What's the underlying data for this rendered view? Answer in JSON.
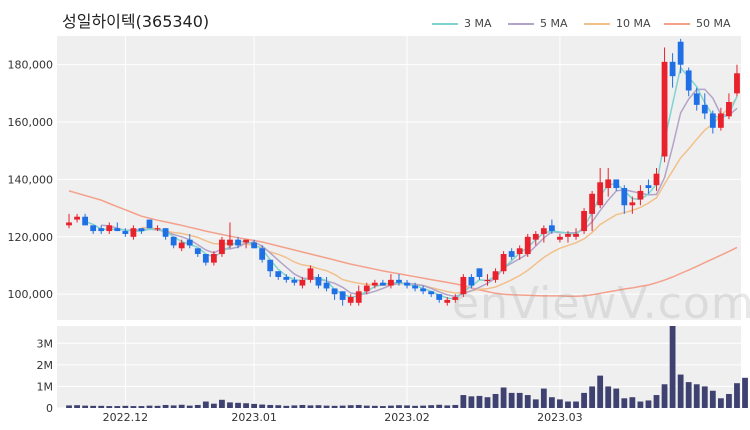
{
  "chart_data": {
    "title": "성일하이텍(365340)",
    "type": "candlestick",
    "x_ticks": [
      "2022.12",
      "2023.01",
      "2023.02",
      "2023.03"
    ],
    "y_ticks": [
      "100,000",
      "120,000",
      "140,000",
      "160,000",
      "180,000"
    ],
    "y_range": [
      91000,
      190000
    ],
    "volume_ticks": [
      "0",
      "1M",
      "2M",
      "3M"
    ],
    "volume_range": [
      0,
      3800000
    ],
    "legend": [
      {
        "name": "3 MA",
        "color": "#7fd3cf"
      },
      {
        "name": "5 MA",
        "color": "#b3a3c9"
      },
      {
        "name": "10 MA",
        "color": "#f2c08a"
      },
      {
        "name": "50 MA",
        "color": "#f4a08b"
      }
    ],
    "candles": [
      [
        124000,
        128000,
        123000,
        125000
      ],
      [
        126000,
        128000,
        125000,
        127000
      ],
      [
        127000,
        128000,
        124000,
        124000
      ],
      [
        124000,
        124000,
        121000,
        122000
      ],
      [
        123000,
        124000,
        121000,
        122000
      ],
      [
        122000,
        125000,
        121000,
        124000
      ],
      [
        123000,
        125000,
        122000,
        122000
      ],
      [
        122000,
        123000,
        120000,
        121000
      ],
      [
        120000,
        124000,
        119000,
        123000
      ],
      [
        123000,
        123000,
        121000,
        122000
      ],
      [
        126000,
        126000,
        123000,
        123000
      ],
      [
        123000,
        124000,
        122000,
        123000
      ],
      [
        123000,
        123000,
        119000,
        120000
      ],
      [
        120000,
        120000,
        116000,
        117000
      ],
      [
        116000,
        119000,
        115000,
        118000
      ],
      [
        119000,
        121000,
        116000,
        117000
      ],
      [
        116000,
        116000,
        113000,
        114000
      ],
      [
        114000,
        114000,
        110000,
        111000
      ],
      [
        111000,
        115000,
        110000,
        114000
      ],
      [
        114000,
        120000,
        113000,
        119000
      ],
      [
        117000,
        125000,
        116000,
        119000
      ],
      [
        119000,
        120000,
        116000,
        117000
      ],
      [
        118000,
        119000,
        116000,
        119000
      ],
      [
        118000,
        119000,
        116000,
        116000
      ],
      [
        116000,
        117000,
        111000,
        112000
      ],
      [
        112000,
        112000,
        106000,
        108000
      ],
      [
        108000,
        108000,
        105000,
        106000
      ],
      [
        106000,
        107000,
        104000,
        105000
      ],
      [
        105000,
        106000,
        103000,
        104000
      ],
      [
        103000,
        106000,
        102000,
        105000
      ],
      [
        105000,
        110000,
        104000,
        109000
      ],
      [
        106000,
        107000,
        102000,
        103000
      ],
      [
        104000,
        106000,
        101000,
        102000
      ],
      [
        102000,
        102000,
        98000,
        100000
      ],
      [
        101000,
        101000,
        96000,
        98000
      ],
      [
        97000,
        100000,
        96000,
        99000
      ],
      [
        97000,
        103000,
        96000,
        101000
      ],
      [
        101000,
        104000,
        100000,
        103000
      ],
      [
        103000,
        105000,
        102000,
        104000
      ],
      [
        104000,
        105000,
        103000,
        103000
      ],
      [
        103000,
        107000,
        102000,
        105000
      ],
      [
        105000,
        107000,
        103000,
        104000
      ],
      [
        104000,
        105000,
        102000,
        103000
      ],
      [
        103000,
        104000,
        101000,
        102000
      ],
      [
        102000,
        103000,
        100000,
        101000
      ],
      [
        101000,
        101000,
        99000,
        100000
      ],
      [
        100000,
        100000,
        97000,
        98000
      ],
      [
        97000,
        99000,
        96000,
        98000
      ],
      [
        98000,
        100000,
        97000,
        99000
      ],
      [
        100000,
        107000,
        99000,
        106000
      ],
      [
        106000,
        107000,
        102000,
        103000
      ],
      [
        109000,
        109000,
        105000,
        106000
      ],
      [
        105000,
        107000,
        103000,
        105000
      ],
      [
        105000,
        109000,
        104000,
        108000
      ],
      [
        108000,
        115000,
        107000,
        114000
      ],
      [
        115000,
        116000,
        112000,
        113000
      ],
      [
        114000,
        117000,
        112000,
        116000
      ],
      [
        114000,
        121000,
        113000,
        120000
      ],
      [
        119000,
        122000,
        117000,
        121000
      ],
      [
        121000,
        124000,
        118000,
        123000
      ],
      [
        124000,
        126000,
        121000,
        122000
      ],
      [
        119000,
        121000,
        118000,
        120000
      ],
      [
        120000,
        122000,
        118000,
        121000
      ],
      [
        120000,
        123000,
        119000,
        121000
      ],
      [
        122000,
        130000,
        121000,
        129000
      ],
      [
        128000,
        136000,
        122000,
        135000
      ],
      [
        131000,
        144000,
        130000,
        139000
      ],
      [
        137000,
        144000,
        134000,
        140000
      ],
      [
        140000,
        140000,
        136000,
        137000
      ],
      [
        137000,
        138000,
        128000,
        131000
      ],
      [
        131000,
        134000,
        128000,
        132000
      ],
      [
        133000,
        138000,
        131000,
        136000
      ],
      [
        138000,
        140000,
        135000,
        137000
      ],
      [
        138000,
        144000,
        136000,
        142000
      ],
      [
        148000,
        186000,
        146000,
        181000
      ],
      [
        181000,
        184000,
        172000,
        176000
      ],
      [
        188000,
        189000,
        177000,
        180000
      ],
      [
        178000,
        179000,
        169000,
        171000
      ],
      [
        170000,
        172000,
        164000,
        166000
      ],
      [
        166000,
        170000,
        161000,
        163000
      ],
      [
        163000,
        164000,
        156000,
        158000
      ],
      [
        158000,
        165000,
        157000,
        163000
      ],
      [
        162000,
        170000,
        161000,
        167000
      ],
      [
        170000,
        180000,
        169000,
        177000
      ]
    ],
    "volumes": [
      120000,
      130000,
      110000,
      100000,
      100000,
      90000,
      90000,
      100000,
      90000,
      90000,
      110000,
      100000,
      140000,
      120000,
      150000,
      110000,
      140000,
      300000,
      200000,
      380000,
      260000,
      240000,
      220000,
      190000,
      160000,
      140000,
      130000,
      100000,
      120000,
      140000,
      120000,
      130000,
      110000,
      100000,
      110000,
      130000,
      140000,
      110000,
      100000,
      90000,
      110000,
      130000,
      120000,
      100000,
      110000,
      130000,
      150000,
      120000,
      140000,
      600000,
      540000,
      560000,
      500000,
      650000,
      950000,
      700000,
      700000,
      600000,
      400000,
      900000,
      500000,
      400000,
      300000,
      300000,
      700000,
      1000000,
      1500000,
      1000000,
      900000,
      450000,
      500000,
      300000,
      350000,
      600000,
      1100000,
      3800000,
      1550000,
      1200000,
      1100000,
      1000000,
      800000,
      450000,
      650000,
      1150000,
      1400000
    ],
    "ma3": [
      null,
      null,
      125333,
      124333,
      122667,
      122667,
      122667,
      122333,
      122000,
      122000,
      122667,
      122667,
      122000,
      120000,
      118333,
      117333,
      116333,
      114000,
      113000,
      114667,
      116667,
      118333,
      118333,
      117333,
      115667,
      112000,
      108667,
      106333,
      105000,
      104667,
      106000,
      105667,
      104667,
      101667,
      100000,
      99000,
      99333,
      101000,
      102667,
      103333,
      104000,
      104000,
      103333,
      103000,
      102000,
      101000,
      99667,
      98667,
      98333,
      101000,
      102667,
      105000,
      104667,
      106333,
      109000,
      111667,
      114333,
      116333,
      119000,
      121333,
      122000,
      121667,
      121333,
      120667,
      123667,
      128333,
      134333,
      138000,
      138667,
      136000,
      133333,
      133000,
      135000,
      138333,
      153333,
      166333,
      179000,
      175667,
      172333,
      166667,
      162333,
      161333,
      162667,
      169000
    ],
    "ma5": [
      null,
      null,
      null,
      null,
      124000,
      123800,
      123000,
      122200,
      122400,
      122400,
      122600,
      122400,
      121800,
      120800,
      120000,
      119000,
      117200,
      115400,
      114400,
      115800,
      115800,
      116400,
      117800,
      118200,
      116800,
      114400,
      111800,
      109400,
      107000,
      105600,
      105400,
      105200,
      104600,
      103800,
      102400,
      100400,
      100000,
      100200,
      101000,
      102000,
      103200,
      103800,
      103800,
      103400,
      103000,
      102000,
      100800,
      99800,
      99200,
      100200,
      101200,
      102400,
      103800,
      105600,
      109200,
      110800,
      112400,
      114000,
      116800,
      119600,
      121800,
      121400,
      121400,
      121400,
      122600,
      125200,
      129200,
      132800,
      136000,
      136400,
      135800,
      135200,
      134600,
      134800,
      140600,
      151400,
      163200,
      168000,
      171400,
      171400,
      168400,
      162600,
      162400,
      164800
    ],
    "ma10": [
      null,
      null,
      null,
      null,
      null,
      null,
      null,
      null,
      null,
      123200,
      123200,
      122700,
      122000,
      121500,
      121200,
      120500,
      119800,
      118600,
      117600,
      117600,
      117600,
      117600,
      117500,
      117000,
      116200,
      114700,
      113900,
      112800,
      111200,
      110200,
      109800,
      108900,
      108200,
      106900,
      105100,
      104400,
      103800,
      103400,
      103300,
      103100,
      103300,
      103600,
      103700,
      103500,
      103100,
      102300,
      101600,
      100900,
      100400,
      100600,
      101200,
      101700,
      101900,
      102500,
      103700,
      105000,
      106500,
      108300,
      110600,
      112800,
      114600,
      116000,
      117000,
      117900,
      119300,
      121500,
      124300,
      126000,
      127700,
      128400,
      129200,
      130200,
      131800,
      133600,
      138400,
      143000,
      147500,
      150600,
      154000,
      157200,
      159400,
      162200,
      164900,
      168600
    ],
    "ma50": [
      136000,
      135200,
      134400,
      133600,
      132800,
      131600,
      130500,
      129400,
      128300,
      127200,
      126500,
      125800,
      125200,
      124600,
      124000,
      123300,
      122700,
      122000,
      121400,
      120800,
      120200,
      119700,
      119200,
      118700,
      118200,
      117500,
      116800,
      116100,
      115400,
      114700,
      114000,
      113300,
      112600,
      111900,
      111200,
      110500,
      109900,
      109300,
      108700,
      108100,
      107600,
      107100,
      106600,
      106100,
      105600,
      105100,
      104600,
      104100,
      103600,
      103000,
      102200,
      101500,
      100900,
      100300,
      100000,
      99800,
      99700,
      99600,
      99500,
      99400,
      99400,
      99400,
      99300,
      99300,
      99400,
      99800,
      100300,
      100800,
      101300,
      101800,
      102200,
      102700,
      103200,
      104000,
      104900,
      106000,
      107200,
      108400,
      109700,
      111000,
      112300,
      113600,
      114900,
      116300
    ]
  }
}
